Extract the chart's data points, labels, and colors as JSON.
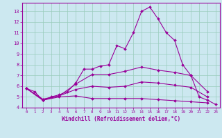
{
  "xlabel": "Windchill (Refroidissement éolien,°C)",
  "ylabel": "",
  "background_color": "#cce8f0",
  "grid_color": "#99ccbb",
  "line_color": "#990099",
  "xlim": [
    -0.5,
    23.5
  ],
  "ylim": [
    4,
    13.8
  ],
  "xticks": [
    0,
    1,
    2,
    3,
    4,
    5,
    6,
    7,
    8,
    9,
    10,
    11,
    12,
    13,
    14,
    15,
    16,
    17,
    18,
    19,
    20,
    21,
    22,
    23
  ],
  "yticks": [
    4,
    5,
    6,
    7,
    8,
    9,
    10,
    11,
    12,
    13
  ],
  "lines": [
    {
      "x": [
        0,
        1,
        2,
        3,
        4,
        5,
        6,
        7,
        8,
        9,
        10,
        11,
        12,
        13,
        14,
        15,
        16,
        17,
        18,
        19,
        20,
        21,
        22,
        23
      ],
      "y": [
        5.8,
        5.5,
        4.7,
        5.0,
        5.2,
        5.5,
        6.3,
        7.6,
        7.6,
        7.9,
        8.0,
        9.8,
        9.5,
        11.0,
        13.0,
        13.4,
        12.3,
        11.0,
        10.3,
        8.0,
        7.0,
        5.0,
        4.7,
        4.3
      ]
    },
    {
      "x": [
        0,
        2,
        4,
        6,
        8,
        10,
        12,
        14,
        16,
        18,
        20,
        22
      ],
      "y": [
        5.8,
        4.7,
        5.1,
        6.2,
        7.1,
        7.1,
        7.4,
        7.8,
        7.5,
        7.3,
        7.0,
        5.5
      ]
    },
    {
      "x": [
        0,
        2,
        4,
        6,
        8,
        10,
        12,
        14,
        16,
        18,
        20,
        22
      ],
      "y": [
        5.8,
        4.8,
        5.1,
        5.7,
        6.0,
        5.9,
        6.0,
        6.4,
        6.3,
        6.1,
        5.9,
        5.0
      ]
    },
    {
      "x": [
        0,
        2,
        4,
        6,
        8,
        10,
        12,
        14,
        16,
        18,
        20,
        22
      ],
      "y": [
        5.8,
        4.7,
        5.0,
        5.1,
        4.85,
        4.85,
        4.85,
        4.85,
        4.75,
        4.65,
        4.55,
        4.45
      ]
    }
  ]
}
